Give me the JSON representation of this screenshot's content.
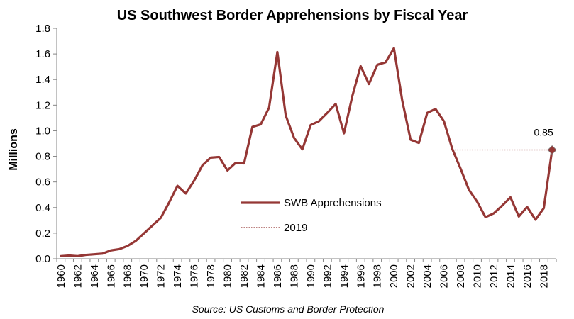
{
  "chart_data": {
    "type": "line",
    "title": "US Southwest Border Apprehensions by Fiscal Year",
    "ylabel": "Millions",
    "xlabel": "",
    "source": "Source: US Customs and Border Protection",
    "ylim": [
      0,
      1.8
    ],
    "yticks": [
      "0.0",
      "0.2",
      "0.4",
      "0.6",
      "0.8",
      "1.0",
      "1.2",
      "1.4",
      "1.6",
      "1.8"
    ],
    "xticks": [
      "1960",
      "1962",
      "1964",
      "1966",
      "1968",
      "1970",
      "1972",
      "1974",
      "1976",
      "1978",
      "1980",
      "1982",
      "1984",
      "1986",
      "1988",
      "1990",
      "1992",
      "1994",
      "1996",
      "1998",
      "2000",
      "2002",
      "2004",
      "2006",
      "2008",
      "2010",
      "2012",
      "2014",
      "2016",
      "2018"
    ],
    "series": [
      {
        "name": "SWB Apprehensions",
        "color": "#953735",
        "x": [
          1960,
          1961,
          1962,
          1963,
          1964,
          1965,
          1966,
          1967,
          1968,
          1969,
          1970,
          1971,
          1972,
          1973,
          1974,
          1975,
          1976,
          1977,
          1978,
          1979,
          1980,
          1981,
          1982,
          1983,
          1984,
          1985,
          1986,
          1987,
          1988,
          1989,
          1990,
          1991,
          1992,
          1993,
          1994,
          1995,
          1996,
          1997,
          1998,
          1999,
          2000,
          2001,
          2002,
          2003,
          2004,
          2005,
          2006,
          2007,
          2008,
          2009,
          2010,
          2011,
          2012,
          2013,
          2014,
          2015,
          2016,
          2017,
          2018,
          2019
        ],
        "values": [
          0.02,
          0.025,
          0.02,
          0.03,
          0.035,
          0.04,
          0.065,
          0.075,
          0.1,
          0.14,
          0.2,
          0.26,
          0.32,
          0.44,
          0.57,
          0.51,
          0.61,
          0.73,
          0.79,
          0.795,
          0.69,
          0.75,
          0.745,
          1.03,
          1.05,
          1.18,
          1.615,
          1.12,
          0.945,
          0.855,
          1.045,
          1.075,
          1.14,
          1.21,
          0.98,
          1.27,
          1.505,
          1.365,
          1.515,
          1.535,
          1.645,
          1.235,
          0.93,
          0.905,
          1.14,
          1.17,
          1.075,
          0.86,
          0.705,
          0.54,
          0.445,
          0.325,
          0.355,
          0.415,
          0.48,
          0.33,
          0.405,
          0.305,
          0.395,
          0.85
        ]
      },
      {
        "name": "2019",
        "color": "#953735",
        "style": "dotted",
        "x": [
          2007,
          2019
        ],
        "values": [
          0.85,
          0.85
        ]
      }
    ],
    "annotation": {
      "x": 2019,
      "y": 0.85,
      "label": "0.85"
    },
    "legend": [
      {
        "label": "SWB Apprehensions",
        "style": "solid"
      },
      {
        "label": "2019",
        "style": "dotted"
      }
    ]
  }
}
